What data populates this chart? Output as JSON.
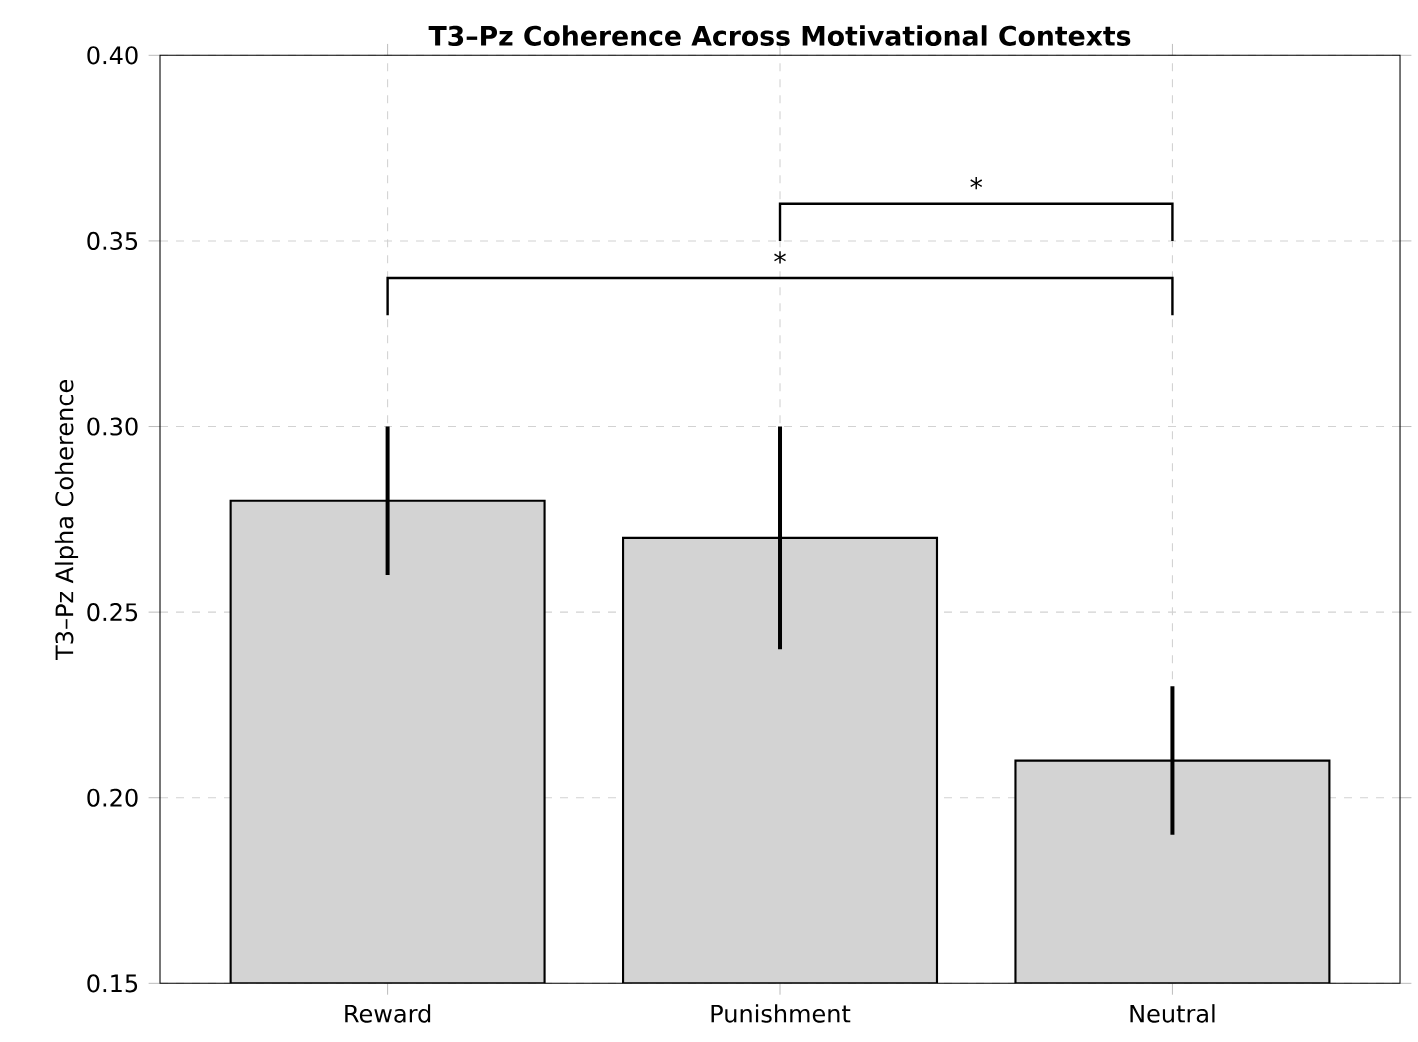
{
  "chart_data": {
    "type": "bar",
    "title": "T3–Pz Coherence Across Motivational Contexts",
    "ylabel": "T3–Pz Alpha Coherence",
    "categories": [
      "Reward",
      "Punishment",
      "Neutral"
    ],
    "values": [
      0.28,
      0.27,
      0.21
    ],
    "errors": [
      [
        0.26,
        0.3
      ],
      [
        0.24,
        0.3
      ],
      [
        0.19,
        0.23
      ]
    ],
    "color": "#d3d3d3",
    "ylim": [
      0.15,
      0.4
    ],
    "yticks": [
      0.15,
      {
        "value": 0.2,
        "label": "0.20"
      },
      0.25,
      {
        "value": 0.3,
        "label": "0.30"
      },
      0.35,
      {
        "value": 0.4,
        "label": "0.40"
      }
    ],
    "grid": true,
    "annotations": [
      "*",
      "*"
    ]
  }
}
